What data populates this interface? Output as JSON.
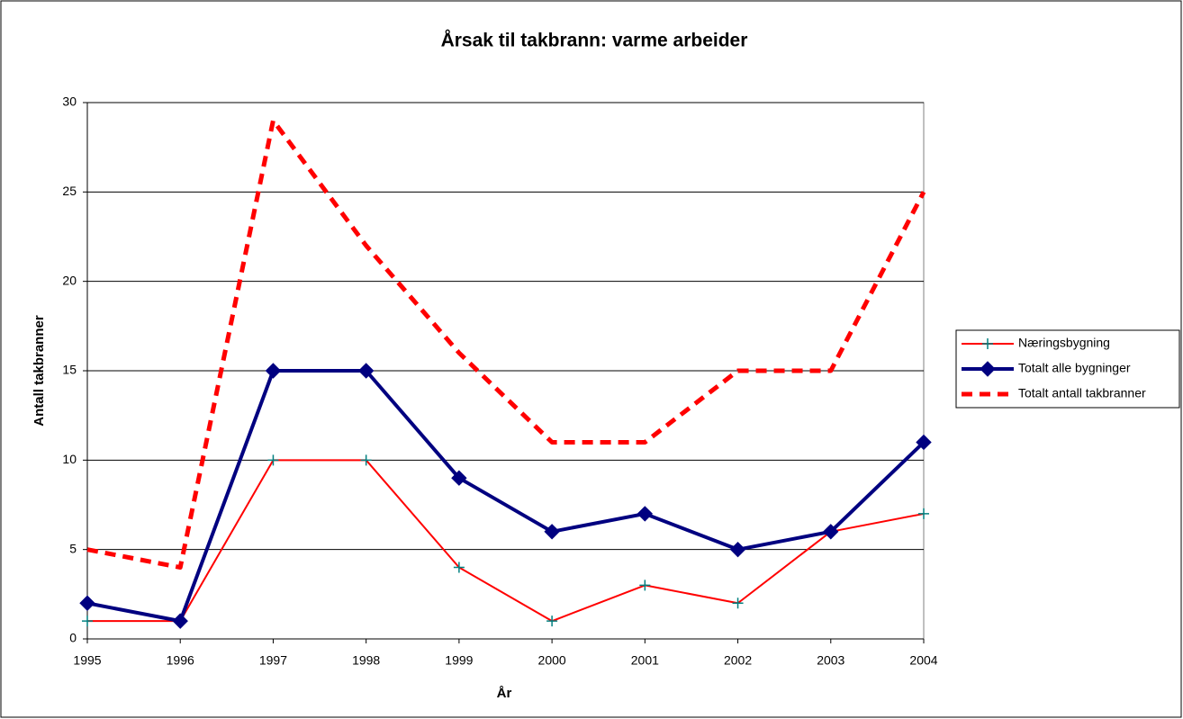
{
  "chart_data": {
    "type": "line",
    "title": "Årsak til takbrann: varme arbeider",
    "x_label": "År",
    "y_label": "Antall takbranner",
    "categories": [
      "1995",
      "1996",
      "1997",
      "1998",
      "1999",
      "2000",
      "2001",
      "2002",
      "2003",
      "2004"
    ],
    "series": [
      {
        "name": "Næringsbygning",
        "color": "#ff0000",
        "marker": "plus",
        "marker_color": "#008080",
        "line_style": "solid",
        "line_width": 2,
        "values": [
          1,
          1,
          10,
          10,
          4,
          1,
          3,
          2,
          6,
          7
        ]
      },
      {
        "name": "Totalt alle bygninger",
        "color": "#000080",
        "marker": "diamond",
        "marker_color": "#000080",
        "line_style": "solid",
        "line_width": 4,
        "values": [
          2,
          1,
          15,
          15,
          9,
          6,
          7,
          5,
          6,
          11
        ]
      },
      {
        "name": "Totalt antall takbranner",
        "color": "#ff0000",
        "marker": "none",
        "marker_color": "#ff0000",
        "line_style": "dashed",
        "line_width": 5,
        "values": [
          5,
          4,
          29,
          22,
          16,
          11,
          11,
          15,
          15,
          25
        ]
      }
    ],
    "ylim": [
      0,
      30
    ],
    "yticks": [
      0,
      5,
      10,
      15,
      20,
      25,
      30
    ],
    "grid": true,
    "legend": "right"
  }
}
